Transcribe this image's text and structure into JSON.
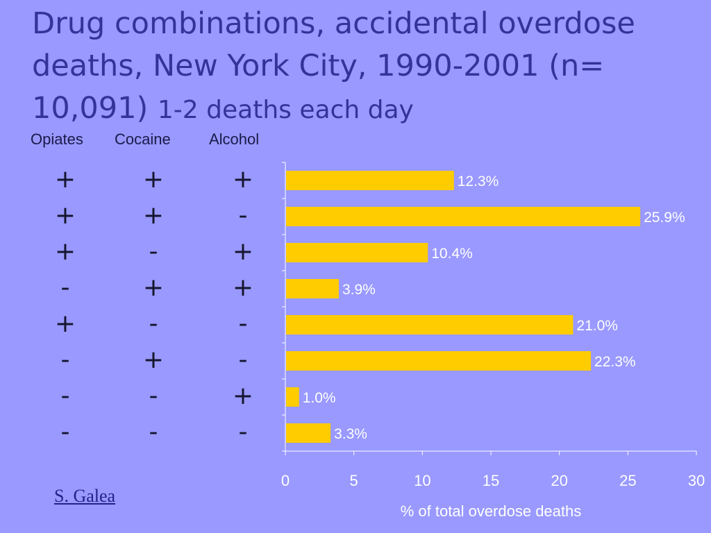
{
  "slide": {
    "title": "Drug combinations, accidental overdose deaths, New York City, 1990-2001 (n= 10,091)",
    "subtitle": "1-2 deaths each day",
    "credit": "S. Galea"
  },
  "table": {
    "headers": [
      "Opiates",
      "Cocaine",
      "Alcohol"
    ],
    "rows": [
      [
        "+",
        "+",
        "+"
      ],
      [
        "+",
        "+",
        "-"
      ],
      [
        "+",
        "-",
        "+"
      ],
      [
        "-",
        "+",
        "+"
      ],
      [
        "+",
        "-",
        "-"
      ],
      [
        "-",
        "+",
        "-"
      ],
      [
        "-",
        "-",
        "+"
      ],
      [
        "-",
        "-",
        "-"
      ]
    ]
  },
  "chart_data": {
    "type": "bar",
    "orientation": "horizontal",
    "categories": [
      "+ + +",
      "+ + -",
      "+ - +",
      "- + +",
      "+ - -",
      "- + -",
      "- - +",
      "- - -"
    ],
    "values": [
      12.3,
      25.9,
      10.4,
      3.9,
      21.0,
      22.3,
      1.0,
      3.3
    ],
    "data_labels": [
      "12.3%",
      "25.9%",
      "10.4%",
      "3.9%",
      "21.0%",
      "22.3%",
      "1.0%",
      "3.3%"
    ],
    "xlabel": "% of total overdose deaths",
    "xlim": [
      0,
      30
    ],
    "xticks": [
      "0",
      "5",
      "10",
      "15",
      "20",
      "25",
      "30"
    ],
    "grid": false,
    "colors": {
      "bar": "#ffcc00",
      "background": "#9999ff",
      "title": "#33339a"
    }
  }
}
